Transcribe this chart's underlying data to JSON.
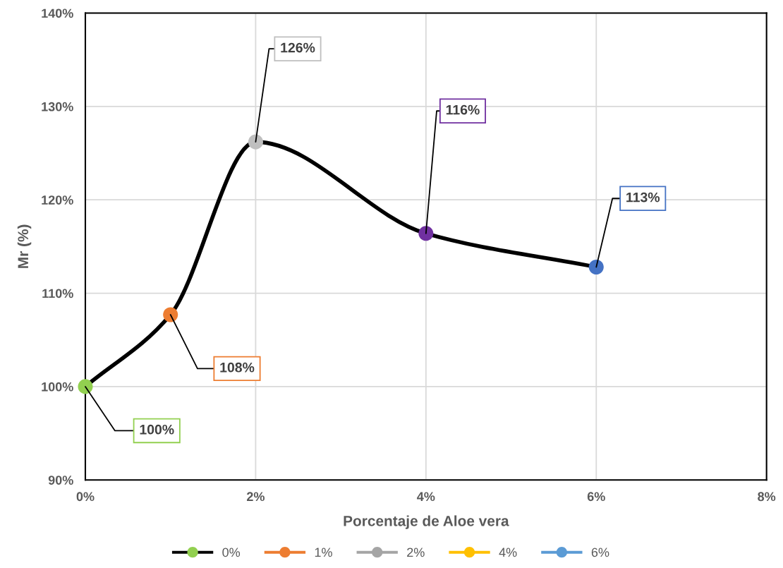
{
  "chart_data": {
    "type": "line",
    "xlabel": "Porcentaje de Aloe vera",
    "ylabel": "Mr (%)",
    "x": [
      0,
      1,
      2,
      4,
      6
    ],
    "series": [
      {
        "name": "0%",
        "color": "#000000",
        "colors": [
          "#92d050",
          "#ed7d31",
          "#bfbfbf",
          "#7030a0",
          "#4472c4"
        ],
        "values": [
          100,
          107.7,
          126.2,
          116.4,
          112.8
        ],
        "value_labels": [
          "100%",
          "108%",
          "126%",
          "116%",
          "113%"
        ]
      },
      {
        "name": "1%",
        "color": "#ed7d31",
        "values": [
          null,
          null,
          null,
          null,
          null
        ]
      },
      {
        "name": "2%",
        "color": "#a5a5a5",
        "values": [
          null,
          null,
          null,
          null,
          null
        ]
      },
      {
        "name": "4%",
        "color": "#ffc000",
        "values": [
          null,
          null,
          null,
          null,
          null
        ]
      },
      {
        "name": "6%",
        "color": "#5b9bd5",
        "values": [
          null,
          null,
          null,
          null,
          null
        ]
      }
    ],
    "xlim": [
      0,
      8
    ],
    "xticks": [
      {
        "value": 0,
        "label": "0%"
      },
      {
        "value": 2,
        "label": "2%"
      },
      {
        "value": 4,
        "label": "4%"
      },
      {
        "value": 6,
        "label": "6%"
      },
      {
        "value": 8,
        "label": "8%"
      }
    ],
    "ylim": [
      90,
      140
    ],
    "yticks": [
      {
        "value": 90,
        "label": "90%"
      },
      {
        "value": 100,
        "label": "100%"
      },
      {
        "value": 110,
        "label": "110%"
      },
      {
        "value": 120,
        "label": "120%"
      },
      {
        "value": 130,
        "label": "130%"
      },
      {
        "value": 140,
        "label": "140%"
      }
    ],
    "grid": true,
    "legend": "bottom",
    "marker": "circle",
    "line_style": "solid"
  }
}
